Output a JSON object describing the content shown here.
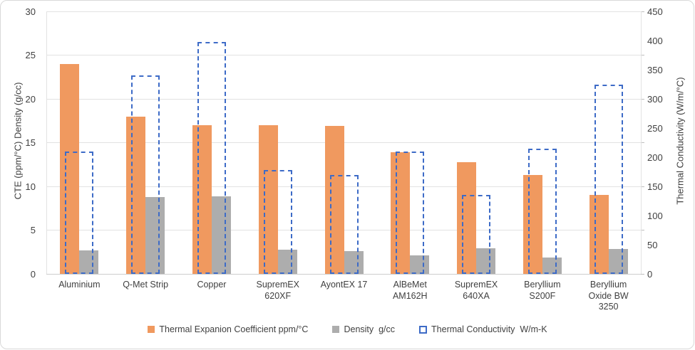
{
  "chart": {
    "left_axis": {
      "title": "CTE (ppm/°C)  Density (g/cc)",
      "min": 0,
      "max": 30,
      "step": 5,
      "ticks": [
        0,
        5,
        10,
        15,
        20,
        25,
        30
      ]
    },
    "right_axis": {
      "title": "Thermal Conductivity (W/m/°C)",
      "min": 0,
      "max": 450,
      "step": 50,
      "ticks": [
        0,
        50,
        100,
        150,
        200,
        250,
        300,
        350,
        400,
        450
      ]
    },
    "colors": {
      "cte_orange": "#F0995F",
      "density_gray": "#ADADAD",
      "conductivity_blue": "#3D6BC7",
      "gridline": "#E2E2E2",
      "text": "#404040"
    }
  },
  "chart_data": {
    "type": "bar",
    "title": "",
    "grid": true,
    "legend_position": "bottom",
    "left_ylim": [
      0,
      30
    ],
    "right_ylim": [
      0,
      450
    ],
    "categories": [
      "Aluminium",
      "Q-Met Strip",
      "Copper",
      "SupremEX 620XF",
      "AyontEX 17",
      "AlBeMet AM162H",
      "SupremEX 640XA",
      "Beryllium S200F",
      "Beryllium Oxide BW 3250"
    ],
    "category_label_lines": [
      [
        "Aluminium"
      ],
      [
        "Q-Met Strip"
      ],
      [
        "Copper"
      ],
      [
        "SupremEX",
        "620XF"
      ],
      [
        "AyontEX 17"
      ],
      [
        "AlBeMet",
        "AM162H"
      ],
      [
        "SupremEX",
        "640XA"
      ],
      [
        "Beryllium",
        "S200F"
      ],
      [
        "Beryllium",
        "Oxide  BW",
        "3250"
      ]
    ],
    "series": [
      {
        "name": "Thermal Expanion Coefficient ppm/°C",
        "slug": "cte",
        "axis": "left",
        "style": "solid",
        "color": "#F0995F",
        "values": [
          24,
          18,
          17,
          17,
          16.9,
          13.9,
          12.8,
          11.3,
          9
        ]
      },
      {
        "name": "Density  g/cc",
        "slug": "density",
        "axis": "left",
        "style": "solid",
        "color": "#ADADAD",
        "values": [
          2.7,
          8.8,
          8.9,
          2.8,
          2.6,
          2.1,
          2.9,
          1.85,
          2.85
        ]
      },
      {
        "name": "Thermal Conductivity  W/m-K",
        "slug": "thermal-conductivity",
        "axis": "right",
        "style": "dashed-outline",
        "color": "#3D6BC7",
        "values": [
          210,
          340,
          398,
          178,
          170,
          210,
          135,
          215,
          325
        ]
      }
    ]
  }
}
